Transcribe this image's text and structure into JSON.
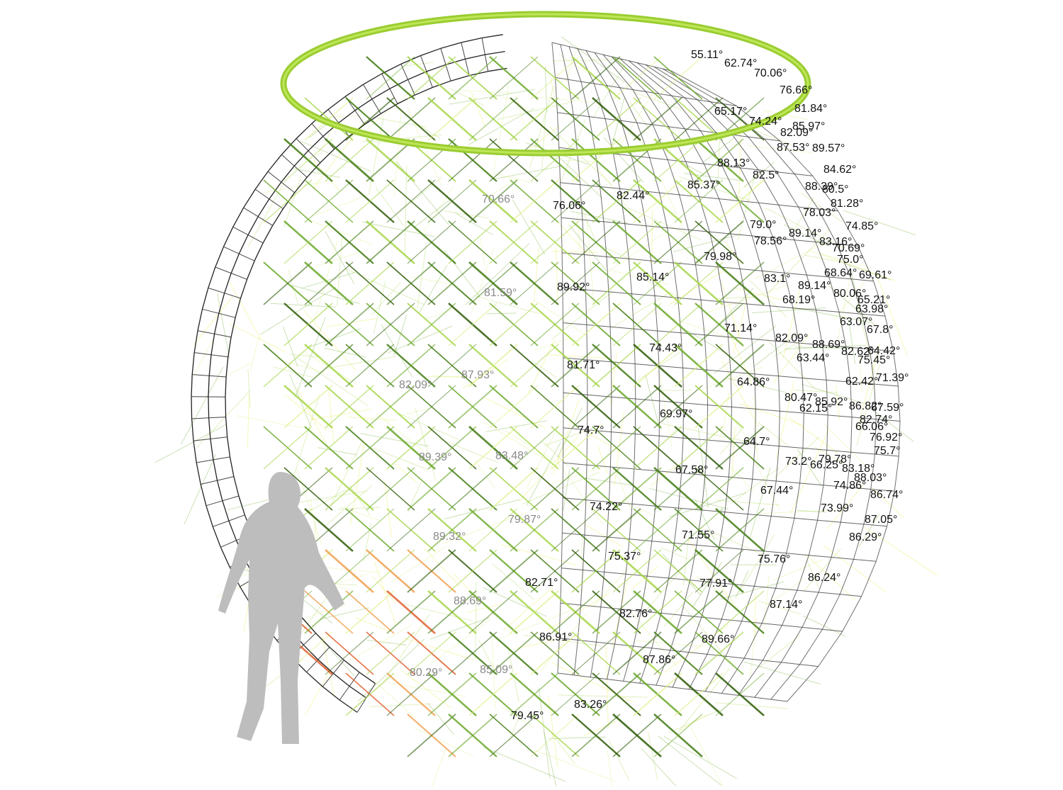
{
  "colors": {
    "background": "#ffffff",
    "ring": "#9acd32",
    "ring_highlight": "#c8ec60",
    "silhouette": "#bdbdbd",
    "strut_palette": [
      "#2d5a05",
      "#3f7a10",
      "#6aa82a",
      "#a6d64a",
      "#d8ef7a",
      "#e8e83a",
      "#f0a050",
      "#e06030",
      "#555555",
      "#222222"
    ]
  },
  "diagram": {
    "subject": "lattice-sphere-pavilion",
    "angle_labels": [
      {
        "text": "55.11°"
      },
      {
        "text": "62.74°"
      },
      {
        "text": "70.06°"
      },
      {
        "text": "76.66°"
      },
      {
        "text": "81.84°"
      },
      {
        "text": "85.97°"
      },
      {
        "text": "89.57°"
      },
      {
        "text": "84.62°"
      },
      {
        "text": "65.17°"
      },
      {
        "text": "74.24°"
      },
      {
        "text": "82.09°"
      },
      {
        "text": "87.53°"
      },
      {
        "text": "88.13°"
      },
      {
        "text": "82.5°"
      },
      {
        "text": "88.39°"
      },
      {
        "text": "80.5°"
      },
      {
        "text": "81.28°"
      },
      {
        "text": "78.03°"
      },
      {
        "text": "74.85°"
      },
      {
        "text": "79.0°"
      },
      {
        "text": "78.56°"
      },
      {
        "text": "89.14°"
      },
      {
        "text": "83.16°"
      },
      {
        "text": "70.69°"
      },
      {
        "text": "75.0°"
      },
      {
        "text": "68.64°"
      },
      {
        "text": "69.61°"
      },
      {
        "text": "83.1°"
      },
      {
        "text": "89.14°"
      },
      {
        "text": "80.06°"
      },
      {
        "text": "65.21°"
      },
      {
        "text": "63.98°"
      },
      {
        "text": "68.19°"
      },
      {
        "text": "63.07°"
      },
      {
        "text": "67.8°"
      },
      {
        "text": "82.09°"
      },
      {
        "text": "88.69°"
      },
      {
        "text": "82.62°"
      },
      {
        "text": "64.42°"
      },
      {
        "text": "63.44°"
      },
      {
        "text": "75.45°"
      },
      {
        "text": "71.39°"
      },
      {
        "text": "62.42°"
      },
      {
        "text": "80.47°"
      },
      {
        "text": "85.92°"
      },
      {
        "text": "86.82°"
      },
      {
        "text": "62.15°"
      },
      {
        "text": "67.59°"
      },
      {
        "text": "82.74°"
      },
      {
        "text": "66.06°"
      },
      {
        "text": "76.92°"
      },
      {
        "text": "75.7°"
      },
      {
        "text": "79.78°"
      },
      {
        "text": "83.18°"
      },
      {
        "text": "73.2°"
      },
      {
        "text": "66.25°"
      },
      {
        "text": "88.03°"
      },
      {
        "text": "74.86°"
      },
      {
        "text": "86.74°"
      },
      {
        "text": "87.05°"
      },
      {
        "text": "73.99°"
      },
      {
        "text": "86.29°"
      },
      {
        "text": "86.24°"
      },
      {
        "text": "87.14°"
      },
      {
        "text": "76.06°"
      },
      {
        "text": "82.44°"
      },
      {
        "text": "85.37°"
      },
      {
        "text": "79.98°"
      },
      {
        "text": "85.14°"
      },
      {
        "text": "89.92°"
      },
      {
        "text": "71.14°"
      },
      {
        "text": "74.43°"
      },
      {
        "text": "81.71°"
      },
      {
        "text": "64.86°"
      },
      {
        "text": "69.97°"
      },
      {
        "text": "74.7°"
      },
      {
        "text": "64.7°"
      },
      {
        "text": "67.58°"
      },
      {
        "text": "67.44°"
      },
      {
        "text": "74.22°"
      },
      {
        "text": "71.55°"
      },
      {
        "text": "75.76°"
      },
      {
        "text": "75.37°"
      },
      {
        "text": "77.91°"
      },
      {
        "text": "82.71°"
      },
      {
        "text": "82.76°"
      },
      {
        "text": "89.66°"
      },
      {
        "text": "86.91°"
      },
      {
        "text": "87.86°"
      },
      {
        "text": "83.26°"
      },
      {
        "text": "79.45°"
      },
      {
        "text": "85.09°"
      },
      {
        "text": "79.87°"
      },
      {
        "text": "83.48°"
      },
      {
        "text": "87.93°"
      },
      {
        "text": "81.59°"
      },
      {
        "text": "70.66°"
      },
      {
        "text": "88.69°"
      },
      {
        "text": "89.32°"
      },
      {
        "text": "89.39°"
      },
      {
        "text": "82.09°"
      },
      {
        "text": "80.29°"
      }
    ]
  }
}
